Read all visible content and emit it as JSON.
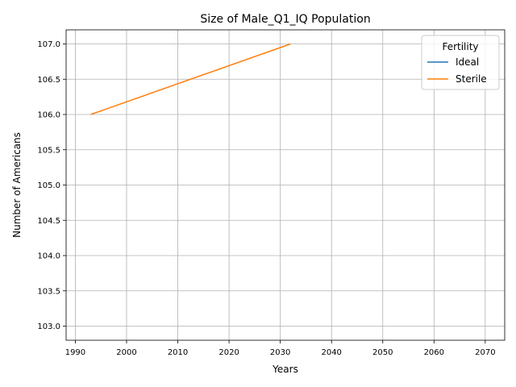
{
  "chart_data": {
    "type": "line",
    "title": "Size of Male_Q1_IQ Population",
    "xlabel": "Years",
    "ylabel": "Number of Americans",
    "xlim": [
      1988.2,
      2073.8
    ],
    "ylim": [
      102.8,
      107.2
    ],
    "xticks": [
      1990,
      2000,
      2010,
      2020,
      2030,
      2040,
      2050,
      2060,
      2070
    ],
    "yticks": [
      103.0,
      103.5,
      104.0,
      104.5,
      105.0,
      105.5,
      106.0,
      106.5,
      107.0
    ],
    "grid": true,
    "legend": {
      "title": "Fertility",
      "placement": "top-right"
    },
    "series": [
      {
        "name": "Ideal",
        "color": "#1f77b4",
        "x": [],
        "y": []
      },
      {
        "name": "Sterile",
        "color": "#ff7f0e",
        "x": [
          1993,
          2032
        ],
        "y": [
          106.0,
          107.0
        ]
      }
    ]
  }
}
